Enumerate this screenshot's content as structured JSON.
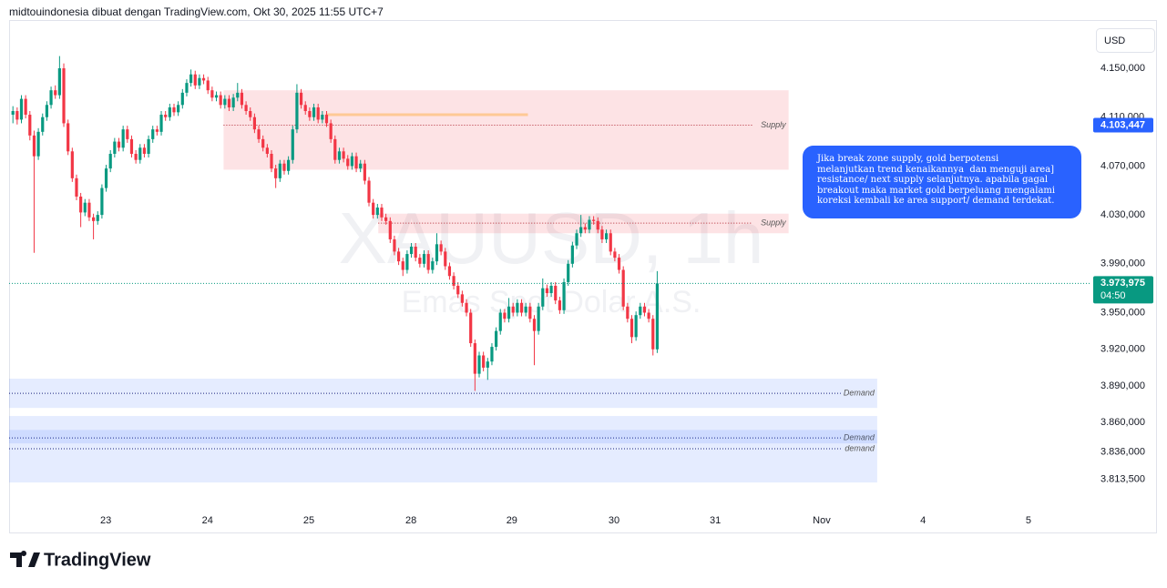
{
  "header": "midtouindonesia dibuat dengan TradingView.com, Okt 30, 2025 11:55 UTC+7",
  "currency_button": "USD",
  "brand": "TradingView",
  "chart_data": {
    "type": "candlestick",
    "title": "XAUUSD, 1h",
    "subtitle": "Emas Spot Dolar A.S.",
    "up_color": "#089981",
    "down_color": "#f23645",
    "grid": false,
    "ylim": [
      3791.7,
      4189.5
    ],
    "yticks": [
      {
        "value": 4150,
        "label": "4.150,000"
      },
      {
        "value": 4110,
        "label": "4.110,000"
      },
      {
        "value": 4070,
        "label": "4.070,000"
      },
      {
        "value": 4030,
        "label": "4.030,000"
      },
      {
        "value": 3990,
        "label": "3.990,000"
      },
      {
        "value": 3950,
        "label": "3.950,000"
      },
      {
        "value": 3920,
        "label": "3.920,000"
      },
      {
        "value": 3890,
        "label": "3.890,000"
      },
      {
        "value": 3860,
        "label": "3.860,000"
      },
      {
        "value": 3836,
        "label": "3.836,000"
      },
      {
        "value": 3813.5,
        "label": "3.813,500"
      }
    ],
    "xlim": [
      -0.9,
      254
    ],
    "xticks": [
      {
        "value": 21.9,
        "label": "23"
      },
      {
        "value": 45.9,
        "label": "24"
      },
      {
        "value": 69.8,
        "label": "25"
      },
      {
        "value": 93.9,
        "label": "28"
      },
      {
        "value": 117.7,
        "label": "29"
      },
      {
        "value": 141.8,
        "label": "30"
      },
      {
        "value": 165.7,
        "label": "31"
      },
      {
        "value": 190.8,
        "label": "Nov"
      },
      {
        "value": 214.7,
        "label": "4"
      },
      {
        "value": 239.6,
        "label": "5"
      }
    ],
    "zones": [
      {
        "start": 49.7,
        "end": 183,
        "top": 4132,
        "bottom": 4067,
        "color": "#f23645",
        "lines": [
          {
            "value": 4103.447,
            "label": "Supply"
          }
        ]
      },
      {
        "start": 86.2,
        "end": 183,
        "top": 4031,
        "bottom": 4015,
        "color": "#f23645",
        "lines": [
          {
            "value": 4023.3,
            "label": "Supply"
          }
        ]
      },
      {
        "start": -0.9,
        "end": 203.9,
        "top": 3896,
        "bottom": 3872,
        "color": "#2962ff",
        "lines": [
          {
            "value": 3884,
            "label": "Demand"
          }
        ]
      },
      {
        "start": -0.9,
        "end": 203.9,
        "top": 3865.4,
        "bottom": 3811,
        "color": "#2962ff",
        "lines": [
          {
            "value": 3847.5,
            "label": "Demand"
          },
          {
            "value": 3838.6,
            "label": "demand"
          }
        ]
      },
      {
        "start": -0.9,
        "end": 203.9,
        "top": 3854,
        "bottom": 3843,
        "color": "#2962ff",
        "lines": []
      }
    ],
    "trend_lines": [
      {
        "value": 4112,
        "start": 73.8,
        "end": 121.5,
        "color": "#ff9800"
      }
    ],
    "price_labels": [
      {
        "value": 4103.447,
        "label": "4.103,447",
        "color": "#2962ff"
      },
      {
        "value": 3973.975,
        "label": "3.973,975",
        "countdown": "04:50",
        "color": "#089981"
      }
    ],
    "annotation": [
      "Jika break zone supply, gold berpotensi",
      "melanjutkan trend kenaikannya  dan menguji area]",
      "resistance/ next supply selanjutnya. apabila gagal",
      "breakout maka market gold berpeluang mengalami",
      "koreksi kembali ke area support/ demand terdekat."
    ],
    "ohlc": [
      [
        4112,
        4119,
        4105,
        4115
      ],
      [
        4115,
        4118,
        4104,
        4108
      ],
      [
        4108,
        4128,
        4105,
        4125
      ],
      [
        4125,
        4128,
        4109,
        4112
      ],
      [
        4112,
        4115,
        4091,
        4095
      ],
      [
        4095,
        4099,
        3999,
        4078
      ],
      [
        4078,
        4101,
        4075,
        4098
      ],
      [
        4098,
        4113,
        4095,
        4110
      ],
      [
        4110,
        4123,
        4107,
        4120
      ],
      [
        4120,
        4135,
        4117,
        4132
      ],
      [
        4132,
        4136,
        4125,
        4128
      ],
      [
        4128,
        4160,
        4125,
        4150
      ],
      [
        4150,
        4154,
        4102,
        4105
      ],
      [
        4105,
        4108,
        4079,
        4082
      ],
      [
        4082,
        4085,
        4057,
        4060
      ],
      [
        4060,
        4063,
        4042,
        4045
      ],
      [
        4045,
        4048,
        4020,
        4032
      ],
      [
        4032,
        4043,
        4029,
        4040
      ],
      [
        4040,
        4043,
        4025,
        4028
      ],
      [
        4028,
        4031,
        4010,
        4025
      ],
      [
        4025,
        4033,
        4022,
        4030
      ],
      [
        4030,
        4055,
        4027,
        4052
      ],
      [
        4052,
        4071,
        4049,
        4068
      ],
      [
        4068,
        4083,
        4065,
        4080
      ],
      [
        4080,
        4093,
        4077,
        4090
      ],
      [
        4090,
        4093,
        4082,
        4085
      ],
      [
        4085,
        4103,
        4082,
        4100
      ],
      [
        4100,
        4103,
        4089,
        4092
      ],
      [
        4092,
        4095,
        4077,
        4080
      ],
      [
        4080,
        4083,
        4072,
        4075
      ],
      [
        4075,
        4088,
        4072,
        4085
      ],
      [
        4085,
        4088,
        4077,
        4080
      ],
      [
        4080,
        4095,
        4077,
        4092
      ],
      [
        4092,
        4103,
        4089,
        4100
      ],
      [
        4100,
        4103,
        4095,
        4098
      ],
      [
        4098,
        4115,
        4095,
        4112
      ],
      [
        4112,
        4115,
        4107,
        4110
      ],
      [
        4110,
        4121,
        4107,
        4118
      ],
      [
        4118,
        4121,
        4111,
        4114
      ],
      [
        4114,
        4123,
        4111,
        4120
      ],
      [
        4120,
        4133,
        4117,
        4130
      ],
      [
        4130,
        4141,
        4127,
        4138
      ],
      [
        4138,
        4149,
        4135,
        4145
      ],
      [
        4145,
        4148,
        4133,
        4136
      ],
      [
        4136,
        4145,
        4133,
        4142
      ],
      [
        4142,
        4145,
        4137,
        4140
      ],
      [
        4140,
        4143,
        4129,
        4132
      ],
      [
        4132,
        4135,
        4123,
        4126
      ],
      [
        4126,
        4131,
        4123,
        4128
      ],
      [
        4128,
        4131,
        4117,
        4120
      ],
      [
        4120,
        4128,
        4117,
        4125
      ],
      [
        4125,
        4128,
        4115,
        4118
      ],
      [
        4118,
        4129,
        4115,
        4126
      ],
      [
        4126,
        4138,
        4123,
        4130
      ],
      [
        4130,
        4133,
        4117,
        4120
      ],
      [
        4120,
        4123,
        4112,
        4115
      ],
      [
        4115,
        4118,
        4107,
        4110
      ],
      [
        4110,
        4113,
        4097,
        4100
      ],
      [
        4100,
        4103,
        4089,
        4092
      ],
      [
        4092,
        4095,
        4082,
        4085
      ],
      [
        4085,
        4088,
        4077,
        4080
      ],
      [
        4080,
        4083,
        4065,
        4068
      ],
      [
        4068,
        4071,
        4052,
        4060
      ],
      [
        4060,
        4075,
        4057,
        4072
      ],
      [
        4072,
        4075,
        4063,
        4066
      ],
      [
        4066,
        4078,
        4063,
        4075
      ],
      [
        4075,
        4103,
        4072,
        4100
      ],
      [
        4100,
        4137,
        4097,
        4130
      ],
      [
        4130,
        4133,
        4117,
        4120
      ],
      [
        4120,
        4123,
        4112,
        4115
      ],
      [
        4115,
        4118,
        4107,
        4110
      ],
      [
        4110,
        4121,
        4107,
        4118
      ],
      [
        4118,
        4121,
        4105,
        4108
      ],
      [
        4108,
        4115,
        4105,
        4112
      ],
      [
        4112,
        4115,
        4102,
        4105
      ],
      [
        4105,
        4108,
        4089,
        4092
      ],
      [
        4092,
        4095,
        4072,
        4075
      ],
      [
        4075,
        4085,
        4072,
        4082
      ],
      [
        4082,
        4085,
        4073,
        4076
      ],
      [
        4076,
        4079,
        4067,
        4070
      ],
      [
        4070,
        4081,
        4067,
        4078
      ],
      [
        4078,
        4081,
        4065,
        4068
      ],
      [
        4068,
        4075,
        4065,
        4072
      ],
      [
        4072,
        4075,
        4055,
        4058
      ],
      [
        4058,
        4061,
        4037,
        4040
      ],
      [
        4040,
        4043,
        4027,
        4030
      ],
      [
        4030,
        4039,
        4027,
        4036
      ],
      [
        4036,
        4039,
        4025,
        4028
      ],
      [
        4028,
        4031,
        4022,
        4025
      ],
      [
        4025,
        4028,
        4007,
        4010
      ],
      [
        4010,
        4013,
        3997,
        4000
      ],
      [
        4000,
        4003,
        3989,
        3992
      ],
      [
        3992,
        3995,
        3980,
        3985
      ],
      [
        3985,
        4001,
        3982,
        3998
      ],
      [
        3998,
        4007,
        3995,
        4004
      ],
      [
        4004,
        4007,
        3992,
        3995
      ],
      [
        3995,
        3998,
        3987,
        3990
      ],
      [
        3990,
        4001,
        3987,
        3998
      ],
      [
        3998,
        4001,
        3982,
        3985
      ],
      [
        3985,
        3995,
        3982,
        3992
      ],
      [
        3992,
        4015,
        3989,
        4006
      ],
      [
        4006,
        4009,
        3997,
        4000
      ],
      [
        4000,
        4003,
        3985,
        3988
      ],
      [
        3988,
        3991,
        3977,
        3980
      ],
      [
        3980,
        3983,
        3969,
        3972
      ],
      [
        3972,
        3975,
        3962,
        3965
      ],
      [
        3965,
        3968,
        3955,
        3958
      ],
      [
        3958,
        3961,
        3947,
        3950
      ],
      [
        3950,
        3953,
        3922,
        3925
      ],
      [
        3925,
        3928,
        3886,
        3900
      ],
      [
        3900,
        3918,
        3897,
        3915
      ],
      [
        3915,
        3918,
        3902,
        3905
      ],
      [
        3905,
        3913,
        3895,
        3910
      ],
      [
        3910,
        3925,
        3907,
        3922
      ],
      [
        3922,
        3938,
        3919,
        3935
      ],
      [
        3935,
        3953,
        3932,
        3950
      ],
      [
        3950,
        3953,
        3942,
        3945
      ],
      [
        3945,
        3962,
        3942,
        3955
      ],
      [
        3955,
        3958,
        3947,
        3950
      ],
      [
        3950,
        3961,
        3947,
        3958
      ],
      [
        3958,
        3961,
        3947,
        3950
      ],
      [
        3950,
        3958,
        3947,
        3955
      ],
      [
        3955,
        3958,
        3942,
        3945
      ],
      [
        3945,
        3948,
        3907,
        3935
      ],
      [
        3935,
        3958,
        3932,
        3955
      ],
      [
        3955,
        3978,
        3952,
        3970
      ],
      [
        3970,
        3973,
        3963,
        3966
      ],
      [
        3966,
        3975,
        3963,
        3972
      ],
      [
        3972,
        3975,
        3957,
        3960
      ],
      [
        3960,
        3963,
        3949,
        3952
      ],
      [
        3952,
        3978,
        3949,
        3975
      ],
      [
        3975,
        3993,
        3972,
        3990
      ],
      [
        3990,
        4008,
        3987,
        4005
      ],
      [
        4005,
        4018,
        4002,
        4015
      ],
      [
        4015,
        4030,
        4012,
        4020
      ],
      [
        4020,
        4023,
        4015,
        4018
      ],
      [
        4018,
        4029,
        4015,
        4026
      ],
      [
        4026,
        4029,
        4022,
        4025
      ],
      [
        4025,
        4028,
        4015,
        4018
      ],
      [
        4018,
        4021,
        4007,
        4010
      ],
      [
        4010,
        4018,
        4007,
        4015
      ],
      [
        4015,
        4018,
        3997,
        4000
      ],
      [
        4000,
        4003,
        3992,
        3995
      ],
      [
        3995,
        3998,
        3982,
        3985
      ],
      [
        3985,
        3988,
        3952,
        3955
      ],
      [
        3955,
        3958,
        3942,
        3945
      ],
      [
        3945,
        3948,
        3925,
        3930
      ],
      [
        3930,
        3951,
        3927,
        3948
      ],
      [
        3948,
        3958,
        3945,
        3955
      ],
      [
        3955,
        3958,
        3947,
        3950
      ],
      [
        3950,
        3953,
        3942,
        3945
      ],
      [
        3945,
        3948,
        3915,
        3920
      ],
      [
        3920,
        3984,
        3917,
        3974
      ]
    ]
  }
}
